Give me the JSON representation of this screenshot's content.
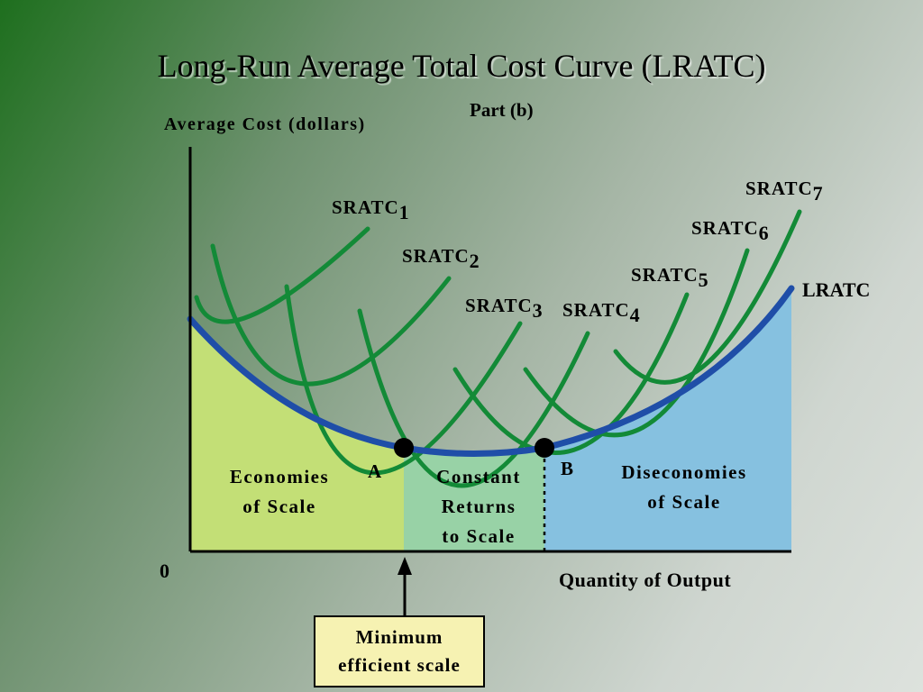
{
  "title": "Long-Run Average Total Cost Curve (LRATC)",
  "part_label": "Part (b)",
  "y_axis_label": "Average Cost (dollars)",
  "x_axis_label": "Quantity of Output",
  "origin_label": "0",
  "points": {
    "a": "A",
    "b": "B"
  },
  "regions": {
    "economies": [
      "Economies",
      "of Scale"
    ],
    "constant": [
      "Constant",
      "Returns",
      "to Scale"
    ],
    "diseconomies": [
      "Diseconomies",
      "of Scale"
    ]
  },
  "curves": {
    "lratc": "LRATC",
    "sratc": [
      {
        "base": "SRATC",
        "sub": "1"
      },
      {
        "base": "SRATC",
        "sub": "2"
      },
      {
        "base": "SRATC",
        "sub": "3"
      },
      {
        "base": "SRATC",
        "sub": "4"
      },
      {
        "base": "SRATC",
        "sub": "5"
      },
      {
        "base": "SRATC",
        "sub": "6"
      },
      {
        "base": "SRATC",
        "sub": "7"
      }
    ]
  },
  "min_efficient_scale": [
    "Minimum",
    "efficient scale"
  ],
  "colors": {
    "economies_fill": "#c3df76",
    "constant_fill": "#98d2a6",
    "diseconomies_fill": "#86c1e0",
    "lratc_stroke": "#1f4ea8",
    "sratc_stroke": "#138a37",
    "box_fill": "#f6f2b2"
  }
}
